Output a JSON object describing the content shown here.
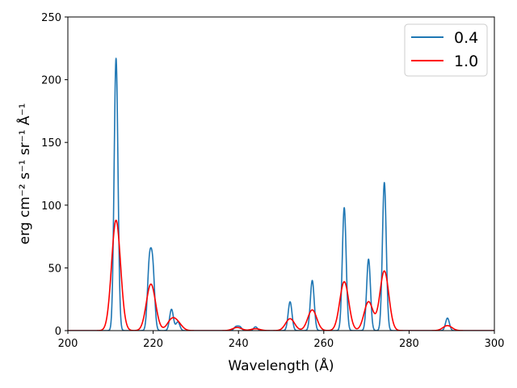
{
  "chart_data": {
    "type": "line",
    "title": "",
    "xlabel": "Wavelength (Å)",
    "ylabel": "erg cm⁻² s⁻¹ sr⁻¹ Å⁻¹",
    "xlim": [
      200,
      300
    ],
    "ylim": [
      0,
      250
    ],
    "xticks": [
      200,
      220,
      240,
      260,
      280,
      300
    ],
    "yticks": [
      0,
      50,
      100,
      150,
      200,
      250
    ],
    "grid": false,
    "legend_position": "top-right",
    "series": [
      {
        "name": "0.4",
        "color": "#1f77b4",
        "line_width_note": "thin",
        "sigma": 0.45,
        "peaks": [
          {
            "center": 211.3,
            "amp": 217
          },
          {
            "center": 219.1,
            "amp": 50
          },
          {
            "center": 219.9,
            "amp": 48
          },
          {
            "center": 224.3,
            "amp": 17
          },
          {
            "center": 225.8,
            "amp": 7
          },
          {
            "center": 239.4,
            "amp": 3
          },
          {
            "center": 240.3,
            "amp": 3
          },
          {
            "center": 244.0,
            "amp": 3
          },
          {
            "center": 252.1,
            "amp": 23
          },
          {
            "center": 257.3,
            "amp": 40
          },
          {
            "center": 264.8,
            "amp": 98
          },
          {
            "center": 270.5,
            "amp": 57
          },
          {
            "center": 274.2,
            "amp": 118
          },
          {
            "center": 289.0,
            "amp": 10
          }
        ]
      },
      {
        "name": "1.0",
        "color": "#ff0000",
        "line_width_note": "thin",
        "sigma": 1.05,
        "peaks": [
          {
            "center": 211.3,
            "amp": 88
          },
          {
            "center": 219.4,
            "amp": 33
          },
          {
            "center": 220.1,
            "amp": 5
          },
          {
            "center": 224.3,
            "amp": 8
          },
          {
            "center": 225.8,
            "amp": 5
          },
          {
            "center": 239.7,
            "amp": 2.5
          },
          {
            "center": 244.0,
            "amp": 1.5
          },
          {
            "center": 252.1,
            "amp": 9.5
          },
          {
            "center": 257.3,
            "amp": 16.5
          },
          {
            "center": 264.8,
            "amp": 39
          },
          {
            "center": 270.5,
            "amp": 23
          },
          {
            "center": 274.2,
            "amp": 47.5
          },
          {
            "center": 289.0,
            "amp": 4
          }
        ]
      }
    ]
  }
}
